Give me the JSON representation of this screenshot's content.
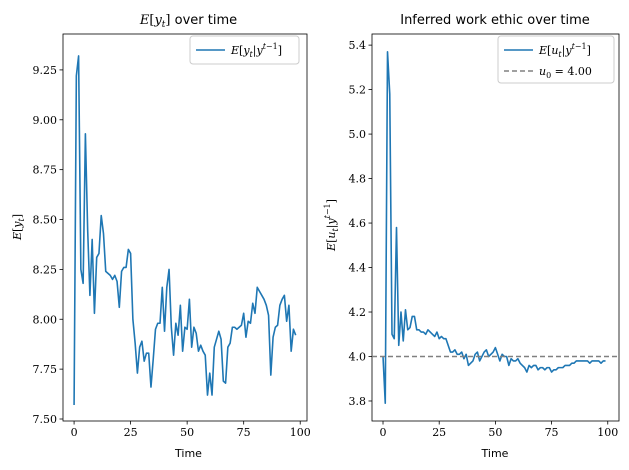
{
  "chart_data": [
    {
      "type": "line",
      "title": "E[y_t] over time",
      "xlabel": "Time",
      "ylabel": "E[y_t]",
      "xlim": [
        -4.9,
        103
      ],
      "ylim": [
        7.49,
        9.43
      ],
      "xticks": [
        0,
        25,
        50,
        75,
        100
      ],
      "yticks": [
        7.5,
        7.75,
        8.0,
        8.25,
        8.5,
        8.75,
        9.0,
        9.25
      ],
      "legend_position": "top-right",
      "grid": false,
      "color": "#1f77b4",
      "series": [
        {
          "name": "E[y_t | y^{t-1}]",
          "x": [
            0,
            1,
            2,
            3,
            4,
            5,
            6,
            7,
            8,
            9,
            10,
            11,
            12,
            13,
            14,
            15,
            16,
            17,
            18,
            19,
            20,
            21,
            22,
            23,
            24,
            25,
            26,
            27,
            28,
            29,
            30,
            31,
            32,
            33,
            34,
            35,
            36,
            37,
            38,
            39,
            40,
            41,
            42,
            43,
            44,
            45,
            46,
            47,
            48,
            49,
            50,
            51,
            52,
            53,
            54,
            55,
            56,
            57,
            58,
            59,
            60,
            61,
            62,
            63,
            64,
            65,
            66,
            67,
            68,
            69,
            70,
            71,
            72,
            73,
            74,
            75,
            76,
            77,
            78,
            79,
            80,
            81,
            82,
            83,
            84,
            85,
            86,
            87,
            88,
            89,
            90,
            91,
            92,
            93,
            94,
            95,
            96,
            97,
            98
          ],
          "values": [
            7.57,
            9.22,
            9.32,
            8.25,
            8.18,
            8.93,
            8.45,
            8.12,
            8.4,
            8.03,
            8.31,
            8.33,
            8.52,
            8.43,
            8.24,
            8.23,
            8.22,
            8.2,
            8.22,
            8.19,
            8.06,
            8.24,
            8.26,
            8.26,
            8.35,
            8.33,
            8.0,
            7.88,
            7.73,
            7.86,
            7.89,
            7.79,
            7.83,
            7.83,
            7.66,
            7.8,
            7.95,
            7.98,
            7.98,
            8.16,
            7.94,
            8.16,
            8.25,
            7.96,
            7.82,
            7.98,
            7.92,
            8.07,
            7.84,
            7.96,
            7.95,
            8.1,
            7.86,
            7.96,
            7.93,
            7.84,
            7.87,
            7.84,
            7.82,
            7.62,
            7.73,
            7.62,
            7.86,
            7.9,
            7.94,
            7.9,
            7.69,
            7.68,
            7.86,
            7.88,
            7.96,
            7.96,
            7.95,
            7.96,
            7.97,
            8.03,
            7.91,
            7.99,
            7.98,
            8.08,
            8.03,
            8.16,
            8.14,
            8.12,
            8.1,
            8.07,
            8.02,
            7.72,
            7.91,
            7.96,
            7.97,
            8.07,
            8.1,
            8.12,
            7.99,
            8.07,
            7.84,
            7.95,
            7.92
          ]
        }
      ]
    },
    {
      "type": "line",
      "title": "Inferred work ethic over time",
      "xlabel": "Time",
      "ylabel": "E[u_t | y^{t-1}]",
      "xlim": [
        -4.9,
        105
      ],
      "ylim": [
        3.71,
        5.45
      ],
      "xticks": [
        0,
        25,
        50,
        75,
        100
      ],
      "yticks": [
        3.8,
        4.0,
        4.2,
        4.4,
        4.6,
        4.8,
        5.0,
        5.2,
        5.4
      ],
      "legend_position": "top-right",
      "grid": false,
      "series": [
        {
          "name": "E[u_t | y^{t-1}]",
          "color": "#1f77b4",
          "style": "solid",
          "x": [
            0,
            1,
            2,
            3,
            4,
            5,
            6,
            7,
            8,
            9,
            10,
            11,
            12,
            13,
            14,
            15,
            16,
            17,
            18,
            19,
            20,
            21,
            22,
            23,
            24,
            25,
            26,
            27,
            28,
            29,
            30,
            31,
            32,
            33,
            34,
            35,
            36,
            37,
            38,
            39,
            40,
            41,
            42,
            43,
            44,
            45,
            46,
            47,
            48,
            49,
            50,
            51,
            52,
            53,
            54,
            55,
            56,
            57,
            58,
            59,
            60,
            61,
            62,
            63,
            64,
            65,
            66,
            67,
            68,
            69,
            70,
            71,
            72,
            73,
            74,
            75,
            76,
            77,
            78,
            79,
            80,
            81,
            82,
            83,
            84,
            85,
            86,
            87,
            88,
            89,
            90,
            91,
            92,
            93,
            94,
            95,
            96,
            97,
            98,
            99
          ],
          "values": [
            4.0,
            3.79,
            5.37,
            5.18,
            4.1,
            4.08,
            4.58,
            4.05,
            4.2,
            4.07,
            4.21,
            4.12,
            4.13,
            4.18,
            4.18,
            4.12,
            4.12,
            4.11,
            4.11,
            4.1,
            4.12,
            4.11,
            4.1,
            4.09,
            4.11,
            4.08,
            4.09,
            4.08,
            4.08,
            4.05,
            4.02,
            4.02,
            4.03,
            4.01,
            4.01,
            4.02,
            3.99,
            4.01,
            3.96,
            3.97,
            3.98,
            4.01,
            4.02,
            3.98,
            4.0,
            4.02,
            4.03,
            4.0,
            4.01,
            4.02,
            4.04,
            4.01,
            3.98,
            4.01,
            4.0,
            4.0,
            3.96,
            3.99,
            3.98,
            3.98,
            3.99,
            3.97,
            3.96,
            3.95,
            3.93,
            3.96,
            3.95,
            3.96,
            3.96,
            3.94,
            3.95,
            3.95,
            3.94,
            3.95,
            3.95,
            3.93,
            3.94,
            3.94,
            3.95,
            3.95,
            3.95,
            3.96,
            3.96,
            3.96,
            3.97,
            3.97,
            3.98,
            3.98,
            3.98,
            3.98,
            3.98,
            3.98,
            3.97,
            3.98,
            3.98,
            3.98,
            3.98,
            3.97,
            3.98,
            3.98
          ]
        },
        {
          "name": "u_0 = 4.00",
          "color": "#808080",
          "style": "dashed",
          "type": "hline",
          "y": 4.0
        }
      ]
    }
  ]
}
